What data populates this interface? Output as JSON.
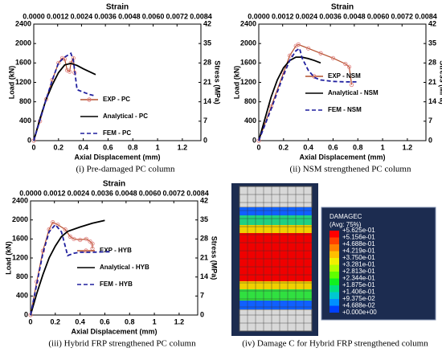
{
  "chart_data": [
    {
      "type": "line",
      "caption": "(i) Pre-damaged PC column",
      "xlabel": "Axial Displacement (mm)",
      "ylabel": "Load (kN)",
      "x2label": "Strain",
      "y2label": "Stress (MPa)",
      "xlim": [
        0,
        1.35
      ],
      "xticks": [
        0,
        0.2,
        0.4,
        0.6,
        0.8,
        1,
        1.2
      ],
      "x2lim": [
        0,
        0.0084
      ],
      "x2ticks": [
        {
          "value": 0,
          "label": "0.0000"
        },
        {
          "value": 0.0012,
          "label": "0.0012"
        },
        {
          "value": 0.0024,
          "label": "0.0024"
        },
        {
          "value": 0.0036,
          "label": "0.0036"
        },
        {
          "value": 0.0048,
          "label": "0.0048"
        },
        {
          "value": 0.006,
          "label": "0.0060"
        },
        {
          "value": 0.0072,
          "label": "0.0072"
        },
        {
          "value": 0.0084,
          "label": "0.0084"
        }
      ],
      "ylim": [
        0,
        2400
      ],
      "yticks": [
        0,
        400,
        800,
        1200,
        1600,
        2000,
        2400
      ],
      "y2lim": [
        0,
        42
      ],
      "y2ticks": [
        0,
        7,
        14,
        21,
        28,
        35,
        42
      ],
      "series": [
        {
          "name": "EXP - PC",
          "color": "#b4502d",
          "marker": "circle",
          "x": [
            0,
            0.05,
            0.1,
            0.15,
            0.2,
            0.23,
            0.25,
            0.27,
            0.29,
            0.3,
            0.32,
            0.33
          ],
          "values": [
            0,
            400,
            850,
            1250,
            1600,
            1700,
            1680,
            1450,
            1420,
            1600,
            1700,
            1400
          ]
        },
        {
          "name": "Analytical - PC",
          "color": "#000000",
          "x": [
            0,
            0.05,
            0.1,
            0.15,
            0.2,
            0.25,
            0.3,
            0.35,
            0.4,
            0.45,
            0.5
          ],
          "values": [
            0,
            450,
            850,
            1150,
            1400,
            1560,
            1590,
            1550,
            1480,
            1420,
            1360
          ]
        },
        {
          "name": "FEM - PC",
          "color": "#1f1f9e",
          "dash": true,
          "x": [
            0,
            0.05,
            0.1,
            0.15,
            0.2,
            0.25,
            0.3,
            0.32,
            0.35,
            0.4,
            0.45,
            0.5
          ],
          "values": [
            0,
            420,
            850,
            1250,
            1600,
            1720,
            1800,
            1650,
            1050,
            1000,
            950,
            920
          ]
        }
      ]
    },
    {
      "type": "line",
      "caption": "(ii) NSM strengthened PC column",
      "xlabel": "Axial Displacement (mm)",
      "ylabel": "Load (kN)",
      "x2label": "Strain",
      "y2label": "Stress (MPa)",
      "xlim": [
        0,
        1.35
      ],
      "xticks": [
        0,
        0.2,
        0.4,
        0.6,
        0.8,
        1,
        1.2
      ],
      "x2lim": [
        0,
        0.0084
      ],
      "x2ticks": [
        {
          "value": 0,
          "label": "0.0000"
        },
        {
          "value": 0.0012,
          "label": "0.0012"
        },
        {
          "value": 0.0024,
          "label": "0.0024"
        },
        {
          "value": 0.0036,
          "label": "0.0036"
        },
        {
          "value": 0.0048,
          "label": "0.0048"
        },
        {
          "value": 0.006,
          "label": "0.0060"
        },
        {
          "value": 0.0072,
          "label": "0.0072"
        },
        {
          "value": 0.0084,
          "label": "0.0084"
        }
      ],
      "ylim": [
        0,
        2400
      ],
      "yticks": [
        0,
        400,
        800,
        1200,
        1600,
        2000,
        2400
      ],
      "y2lim": [
        0,
        42
      ],
      "y2ticks": [
        0,
        7,
        14,
        21,
        28,
        35,
        42
      ],
      "series": [
        {
          "name": "EXP - NSM",
          "color": "#b4502d",
          "marker": "circle",
          "x": [
            0,
            0.1,
            0.2,
            0.25,
            0.3,
            0.32,
            0.4,
            0.5,
            0.6,
            0.7,
            0.73,
            0.75
          ],
          "values": [
            0,
            700,
            1400,
            1750,
            1950,
            1980,
            1900,
            1800,
            1700,
            1580,
            1520,
            1150
          ]
        },
        {
          "name": "Analytical - NSM",
          "color": "#000000",
          "x": [
            0,
            0.05,
            0.1,
            0.15,
            0.2,
            0.25,
            0.3,
            0.35,
            0.4,
            0.45,
            0.5
          ],
          "values": [
            0,
            450,
            900,
            1250,
            1500,
            1650,
            1720,
            1720,
            1690,
            1650,
            1600
          ]
        },
        {
          "name": "FEM - NSM",
          "color": "#1f1f9e",
          "dash": true,
          "x": [
            0,
            0.1,
            0.2,
            0.25,
            0.3,
            0.33,
            0.35,
            0.4,
            0.45,
            0.5,
            0.6,
            0.7,
            0.8
          ],
          "values": [
            0,
            650,
            1350,
            1650,
            1850,
            1900,
            1700,
            1450,
            1300,
            1250,
            1220,
            1210,
            1210
          ]
        }
      ]
    },
    {
      "type": "line",
      "caption": "(iii) Hybrid FRP strengthened PC column",
      "xlabel": "Axial Displacement (mm)",
      "ylabel": "Load (kN)",
      "x2label": "Strain",
      "y2label": "Stress (MPa)",
      "xlim": [
        0,
        1.35
      ],
      "xticks": [
        0,
        0.2,
        0.4,
        0.6,
        0.8,
        1,
        1.2
      ],
      "x2lim": [
        0,
        0.0084
      ],
      "x2ticks": [
        {
          "value": 0,
          "label": "0.0000"
        },
        {
          "value": 0.0012,
          "label": "0.0012"
        },
        {
          "value": 0.0024,
          "label": "0.0024"
        },
        {
          "value": 0.0036,
          "label": "0.0036"
        },
        {
          "value": 0.0048,
          "label": "0.0048"
        },
        {
          "value": 0.006,
          "label": "0.0060"
        },
        {
          "value": 0.0072,
          "label": "0.0072"
        },
        {
          "value": 0.0084,
          "label": "0.0084"
        }
      ],
      "ylim": [
        0,
        2400
      ],
      "yticks": [
        0,
        400,
        800,
        1200,
        1600,
        2000,
        2400
      ],
      "y2lim": [
        0,
        42
      ],
      "y2ticks": [
        0,
        7,
        14,
        21,
        28,
        35,
        42
      ],
      "series": [
        {
          "name": "EXP - HYB",
          "color": "#b4502d",
          "marker": "circle",
          "x": [
            0,
            0.05,
            0.1,
            0.15,
            0.18,
            0.22,
            0.28,
            0.32,
            0.35,
            0.4,
            0.45,
            0.48,
            0.5,
            0.5
          ],
          "values": [
            0,
            700,
            1350,
            1800,
            1950,
            1900,
            1800,
            1650,
            1600,
            1580,
            1600,
            1550,
            1500,
            1400
          ]
        },
        {
          "name": "Analytical - HYB",
          "color": "#000000",
          "x": [
            0,
            0.05,
            0.1,
            0.15,
            0.2,
            0.25,
            0.3,
            0.4,
            0.5,
            0.6
          ],
          "values": [
            0,
            450,
            850,
            1200,
            1450,
            1650,
            1760,
            1850,
            1930,
            1990
          ]
        },
        {
          "name": "FEM - HYB",
          "color": "#1f1f9e",
          "dash": true,
          "x": [
            0,
            0.05,
            0.1,
            0.15,
            0.2,
            0.25,
            0.3,
            0.35,
            0.4,
            0.5,
            0.6,
            0.65
          ],
          "values": [
            0,
            650,
            1300,
            1750,
            1900,
            1750,
            1250,
            1300,
            1320,
            1320,
            1330,
            1330
          ]
        }
      ]
    }
  ],
  "damage_panel": {
    "caption": "(iv) Damage C for Hybrid FRP strengthened column",
    "legend_title": "DAMAGEC",
    "legend_subtitle": "(Avg: 75%)",
    "labels": [
      "+5.625e-01",
      "+5.156e-01",
      "+4.688e-01",
      "+4.219e-01",
      "+3.750e-01",
      "+3.281e-01",
      "+2.813e-01",
      "+2.344e-01",
      "+1.875e-01",
      "+1.406e-01",
      "+9.375e-02",
      "+4.688e-02",
      "+0.000e+00"
    ],
    "colors": [
      "#ff0000",
      "#ff4000",
      "#ff8000",
      "#ffbf00",
      "#f0f000",
      "#b0ff00",
      "#60ff00",
      "#10f020",
      "#00e080",
      "#00c8d0",
      "#0090ff",
      "#0040ff"
    ]
  }
}
